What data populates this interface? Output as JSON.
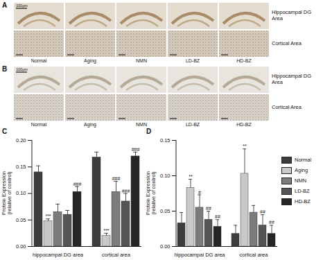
{
  "image_panels": [
    {
      "panel": "A",
      "scale_bar": "100μm",
      "columns": [
        "Normal",
        "Aging",
        "NMN",
        "LD-BZ",
        "HD-BZ"
      ],
      "rows": [
        "Hippocampal DG Area",
        "Cortical Area"
      ]
    },
    {
      "panel": "B",
      "scale_bar": "100μm",
      "columns": [
        "Normal",
        "Aging",
        "NMN",
        "LD-BZ",
        "HD-BZ"
      ],
      "rows": [
        "Hippocampal DG Area",
        "Cortical Area"
      ]
    }
  ],
  "chart_data": [
    {
      "type": "bar",
      "panel": "C",
      "y_label": "Protein Expression (relative of control)",
      "categories": [
        "hippocampal DG area",
        "cortical area"
      ],
      "series": [
        {
          "name": "Normal",
          "color": "#3d3d3d",
          "values": [
            0.14,
            0.168
          ],
          "errors": [
            0.012,
            0.01
          ]
        },
        {
          "name": "Aging",
          "color": "#c8c8c8",
          "values": [
            0.048,
            0.02
          ],
          "errors": [
            0.004,
            0.005
          ]
        },
        {
          "name": "NMN",
          "color": "#7c7c7c",
          "values": [
            0.065,
            0.103
          ],
          "errors": [
            0.015,
            0.02
          ]
        },
        {
          "name": "LD-BZ",
          "color": "#555555",
          "values": [
            0.06,
            0.085
          ],
          "errors": [
            0.008,
            0.015
          ]
        },
        {
          "name": "HD-BZ",
          "color": "#262626",
          "values": [
            0.103,
            0.17
          ],
          "errors": [
            0.01,
            0.008
          ]
        }
      ],
      "annotations": [
        {
          "series": "Aging",
          "category": "hippocampal DG area",
          "text": "***"
        },
        {
          "series": "HD-BZ",
          "category": "hippocampal DG area",
          "text": "###"
        },
        {
          "series": "Aging",
          "category": "cortical area",
          "text": "***"
        },
        {
          "series": "NMN",
          "category": "cortical area",
          "text": "###"
        },
        {
          "series": "LD-BZ",
          "category": "cortical area",
          "text": "###"
        },
        {
          "series": "HD-BZ",
          "category": "cortical area",
          "text": "###"
        }
      ],
      "ylim": [
        0,
        0.2
      ],
      "yticks": [
        {
          "value": 0,
          "label": "0.00"
        },
        {
          "value": 0.05,
          "label": "0.05"
        },
        {
          "value": 0.1,
          "label": "0.10"
        },
        {
          "value": 0.15,
          "label": "0.15"
        },
        {
          "value": 0.2,
          "label": "0.20"
        }
      ]
    },
    {
      "type": "bar",
      "panel": "D",
      "y_label": "Protein Expression (relative of control)",
      "categories": [
        "hippocampal DG area",
        "cortical area"
      ],
      "series": [
        {
          "name": "Normal",
          "color": "#3d3d3d",
          "values": [
            0.033,
            0.018
          ],
          "errors": [
            0.015,
            0.012
          ]
        },
        {
          "name": "Aging",
          "color": "#c8c8c8",
          "values": [
            0.083,
            0.103
          ],
          "errors": [
            0.012,
            0.035
          ]
        },
        {
          "name": "NMN",
          "color": "#7c7c7c",
          "values": [
            0.055,
            0.048
          ],
          "errors": [
            0.018,
            0.01
          ]
        },
        {
          "name": "LD-BZ",
          "color": "#555555",
          "values": [
            0.038,
            0.03
          ],
          "errors": [
            0.012,
            0.015
          ]
        },
        {
          "name": "HD-BZ",
          "color": "#262626",
          "values": [
            0.028,
            0.018
          ],
          "errors": [
            0.01,
            0.012
          ]
        }
      ],
      "annotations": [
        {
          "series": "Aging",
          "category": "hippocampal DG area",
          "text": "**"
        },
        {
          "series": "NMN",
          "category": "hippocampal DG area",
          "text": "#"
        },
        {
          "series": "LD-BZ",
          "category": "hippocampal DG area",
          "text": "##"
        },
        {
          "series": "HD-BZ",
          "category": "hippocampal DG area",
          "text": "##"
        },
        {
          "series": "Aging",
          "category": "cortical area",
          "text": "**"
        },
        {
          "series": "LD-BZ",
          "category": "cortical area",
          "text": "##"
        },
        {
          "series": "HD-BZ",
          "category": "cortical area",
          "text": "##"
        }
      ],
      "ylim": [
        0,
        0.15
      ],
      "yticks": [
        {
          "value": 0,
          "label": "0.00"
        },
        {
          "value": 0.05,
          "label": "0.05"
        },
        {
          "value": 0.1,
          "label": "0.10"
        },
        {
          "value": 0.15,
          "label": "0.15"
        }
      ],
      "legend": "right"
    }
  ]
}
